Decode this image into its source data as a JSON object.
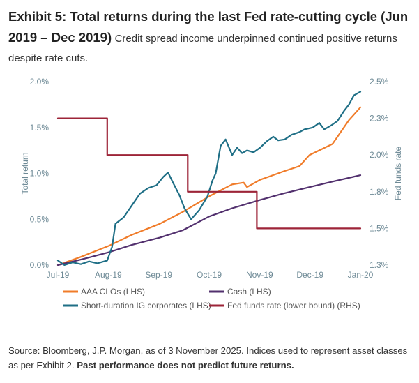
{
  "header": {
    "title": "Exhibit 5: Total returns during the last Fed rate-cutting cycle (Jun 2019 – Dec 2019)",
    "subtitle": "Credit spread income underpinned continued positive returns despite rate cuts."
  },
  "footer": {
    "source": "Source: Bloomberg, J.P. Morgan, as of 3 November 2025. Indices used to represent asset classes as per Exhibit 2.",
    "disclaimer": "Past performance does not predict future returns."
  },
  "chart_data": {
    "type": "line",
    "ylabel": "Total return",
    "y2label": "Fed funds rate",
    "x_tick_labels": [
      "Jul-19",
      "Aug-19",
      "Sep-19",
      "Oct-19",
      "Nov-19",
      "Dec-19",
      "Jan-20"
    ],
    "y_tick_labels": [
      "0.0%",
      "0.5%",
      "1.0%",
      "1.5%",
      "2.0%"
    ],
    "y2_tick_labels": [
      "1.3%",
      "1.5%",
      "1.8%",
      "2.0%",
      "2.3%",
      "2.5%"
    ],
    "x_range": [
      "2019-07-01",
      "2020-01-01"
    ],
    "ylim": [
      0,
      0.02
    ],
    "y2lim": [
      1.25,
      2.5
    ],
    "grid": false,
    "legend_position": "bottom",
    "series": [
      {
        "name": "AAA CLOs (LHS)",
        "axis": "left",
        "color": "#f07c2a",
        "points": [
          [
            "2019-07-01",
            0
          ],
          [
            "2019-07-15",
            0.0009
          ],
          [
            "2019-08-01",
            0.0021
          ],
          [
            "2019-08-15",
            0.0033
          ],
          [
            "2019-09-01",
            0.0045
          ],
          [
            "2019-09-15",
            0.0058
          ],
          [
            "2019-10-01",
            0.0075
          ],
          [
            "2019-10-15",
            0.0088
          ],
          [
            "2019-10-22",
            0.009
          ],
          [
            "2019-10-24",
            0.0085
          ],
          [
            "2019-11-01",
            0.0093
          ],
          [
            "2019-11-15",
            0.0102
          ],
          [
            "2019-11-25",
            0.0108
          ],
          [
            "2019-11-28",
            0.0114
          ],
          [
            "2019-12-01",
            0.012
          ],
          [
            "2019-12-15",
            0.0132
          ],
          [
            "2019-12-25",
            0.0158
          ],
          [
            "2020-01-01",
            0.0172
          ]
        ]
      },
      {
        "name": "Cash (LHS)",
        "axis": "left",
        "color": "#52306e",
        "points": [
          [
            "2019-07-01",
            0
          ],
          [
            "2019-07-15",
            0.0006
          ],
          [
            "2019-08-01",
            0.0014
          ],
          [
            "2019-08-15",
            0.0022
          ],
          [
            "2019-09-01",
            0.003
          ],
          [
            "2019-09-15",
            0.0038
          ],
          [
            "2019-10-01",
            0.0053
          ],
          [
            "2019-10-15",
            0.0062
          ],
          [
            "2019-11-01",
            0.0071
          ],
          [
            "2019-11-15",
            0.0078
          ],
          [
            "2019-12-01",
            0.0085
          ],
          [
            "2019-12-15",
            0.0091
          ],
          [
            "2020-01-01",
            0.0098
          ]
        ]
      },
      {
        "name": "Short-duration IG corporates (LHS)",
        "axis": "left",
        "color": "#1f6f86",
        "points": [
          [
            "2019-07-01",
            0.0005
          ],
          [
            "2019-07-05",
            0
          ],
          [
            "2019-07-10",
            0.0003
          ],
          [
            "2019-07-15",
            0.0001
          ],
          [
            "2019-07-20",
            0.0004
          ],
          [
            "2019-07-25",
            0.0002
          ],
          [
            "2019-07-31",
            0.0005
          ],
          [
            "2019-08-03",
            0.002
          ],
          [
            "2019-08-05",
            0.0045
          ],
          [
            "2019-08-10",
            0.0052
          ],
          [
            "2019-08-15",
            0.0065
          ],
          [
            "2019-08-20",
            0.0078
          ],
          [
            "2019-08-25",
            0.0084
          ],
          [
            "2019-08-30",
            0.0087
          ],
          [
            "2019-09-03",
            0.0096
          ],
          [
            "2019-09-06",
            0.0101
          ],
          [
            "2019-09-09",
            0.009
          ],
          [
            "2019-09-13",
            0.0076
          ],
          [
            "2019-09-16",
            0.0062
          ],
          [
            "2019-09-20",
            0.005
          ],
          [
            "2019-09-25",
            0.006
          ],
          [
            "2019-09-30",
            0.0075
          ],
          [
            "2019-10-03",
            0.0092
          ],
          [
            "2019-10-05",
            0.01
          ],
          [
            "2019-10-08",
            0.013
          ],
          [
            "2019-10-11",
            0.0137
          ],
          [
            "2019-10-15",
            0.012
          ],
          [
            "2019-10-18",
            0.0128
          ],
          [
            "2019-10-21",
            0.0122
          ],
          [
            "2019-10-24",
            0.0125
          ],
          [
            "2019-10-28",
            0.0123
          ],
          [
            "2019-11-01",
            0.0128
          ],
          [
            "2019-11-05",
            0.0135
          ],
          [
            "2019-11-09",
            0.014
          ],
          [
            "2019-11-12",
            0.0136
          ],
          [
            "2019-11-16",
            0.0137
          ],
          [
            "2019-11-20",
            0.0142
          ],
          [
            "2019-11-25",
            0.0145
          ],
          [
            "2019-11-28",
            0.0148
          ],
          [
            "2019-12-03",
            0.015
          ],
          [
            "2019-12-07",
            0.0155
          ],
          [
            "2019-12-10",
            0.0148
          ],
          [
            "2019-12-14",
            0.0152
          ],
          [
            "2019-12-18",
            0.0157
          ],
          [
            "2019-12-22",
            0.0168
          ],
          [
            "2019-12-25",
            0.0175
          ],
          [
            "2019-12-28",
            0.0185
          ],
          [
            "2020-01-01",
            0.0189
          ]
        ]
      },
      {
        "name": "Fed funds rate (lower bound) (RHS)",
        "axis": "right",
        "color": "#9d2438",
        "points": [
          [
            "2019-07-01",
            2.25
          ],
          [
            "2019-07-31",
            2.25
          ],
          [
            "2019-07-31",
            2.0
          ],
          [
            "2019-09-18",
            2.0
          ],
          [
            "2019-09-18",
            1.75
          ],
          [
            "2019-10-30",
            1.75
          ],
          [
            "2019-10-30",
            1.5
          ],
          [
            "2020-01-01",
            1.5
          ]
        ]
      }
    ]
  }
}
